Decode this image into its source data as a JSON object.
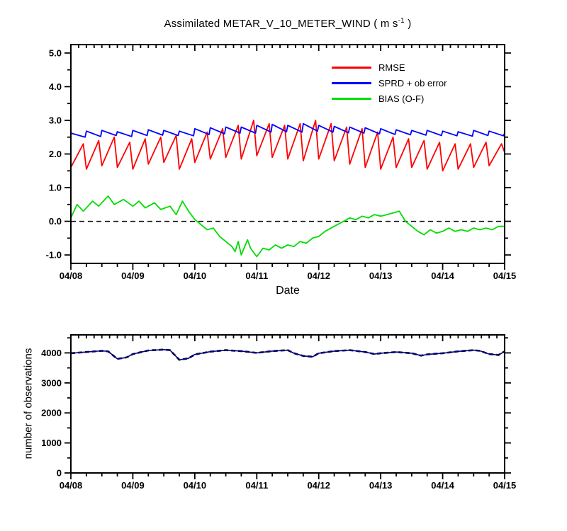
{
  "title": {
    "prefix": "Assimilated METAR_V_10_METER_WIND ( m s",
    "sup": "-1",
    "suffix": " )"
  },
  "chart_data": [
    {
      "type": "line",
      "panel": "errors",
      "title": "Assimilated METAR_V_10_METER_WIND ( m s-1 )",
      "xlabel": "Date",
      "xlim": [
        0,
        7
      ],
      "ylim": [
        -1.25,
        5.25
      ],
      "xticks": {
        "positions": [
          0,
          1,
          2,
          3,
          4,
          5,
          6,
          7
        ],
        "labels": [
          "04/08",
          "04/09",
          "04/10",
          "04/11",
          "04/12",
          "04/13",
          "04/14",
          "04/15"
        ]
      },
      "yticks": {
        "values": [
          -1,
          0,
          1,
          2,
          3,
          4,
          5
        ],
        "labels": [
          "-1.0",
          "0.0",
          "1.0",
          "2.0",
          "3.0",
          "4.0",
          "5.0"
        ]
      },
      "x_minor_step": 0.25,
      "x_minor_step_top": 0.125,
      "y_minor_step": 0.5,
      "zero_line": true,
      "grid": false,
      "legend_position": "top-right-inside",
      "series": [
        {
          "name": "RMSE",
          "color": "#ff0000",
          "points": [
            [
              0,
              1.6
            ],
            [
              0.2,
              2.3
            ],
            [
              0.25,
              1.55
            ],
            [
              0.45,
              2.4
            ],
            [
              0.5,
              1.65
            ],
            [
              0.7,
              2.5
            ],
            [
              0.75,
              1.6
            ],
            [
              0.95,
              2.35
            ],
            [
              1.0,
              1.55
            ],
            [
              1.2,
              2.45
            ],
            [
              1.25,
              1.7
            ],
            [
              1.45,
              2.5
            ],
            [
              1.5,
              1.75
            ],
            [
              1.7,
              2.55
            ],
            [
              1.75,
              1.55
            ],
            [
              1.95,
              2.45
            ],
            [
              2.0,
              1.75
            ],
            [
              2.2,
              2.65
            ],
            [
              2.25,
              1.85
            ],
            [
              2.45,
              2.75
            ],
            [
              2.5,
              1.9
            ],
            [
              2.7,
              2.85
            ],
            [
              2.75,
              1.85
            ],
            [
              2.95,
              3.0
            ],
            [
              3.0,
              1.95
            ],
            [
              3.2,
              2.9
            ],
            [
              3.25,
              1.9
            ],
            [
              3.45,
              2.85
            ],
            [
              3.5,
              1.85
            ],
            [
              3.7,
              2.9
            ],
            [
              3.75,
              1.8
            ],
            [
              3.95,
              3.0
            ],
            [
              4.0,
              1.85
            ],
            [
              4.2,
              2.9
            ],
            [
              4.25,
              1.8
            ],
            [
              4.45,
              2.8
            ],
            [
              4.5,
              1.7
            ],
            [
              4.7,
              2.75
            ],
            [
              4.75,
              1.6
            ],
            [
              4.95,
              2.65
            ],
            [
              5.0,
              1.55
            ],
            [
              5.2,
              2.5
            ],
            [
              5.25,
              1.6
            ],
            [
              5.45,
              2.45
            ],
            [
              5.5,
              1.6
            ],
            [
              5.7,
              2.4
            ],
            [
              5.75,
              1.55
            ],
            [
              5.95,
              2.35
            ],
            [
              6.0,
              1.5
            ],
            [
              6.2,
              2.3
            ],
            [
              6.25,
              1.55
            ],
            [
              6.45,
              2.3
            ],
            [
              6.5,
              1.6
            ],
            [
              6.7,
              2.35
            ],
            [
              6.75,
              1.65
            ],
            [
              6.95,
              2.3
            ],
            [
              7.0,
              2.05
            ]
          ]
        },
        {
          "name": "SPRD + ob error",
          "color": "#0000ff",
          "points": [
            [
              0,
              2.62
            ],
            [
              0.23,
              2.5
            ],
            [
              0.25,
              2.68
            ],
            [
              0.48,
              2.52
            ],
            [
              0.5,
              2.7
            ],
            [
              0.73,
              2.55
            ],
            [
              0.75,
              2.66
            ],
            [
              0.98,
              2.52
            ],
            [
              1.0,
              2.7
            ],
            [
              1.23,
              2.55
            ],
            [
              1.25,
              2.72
            ],
            [
              1.48,
              2.56
            ],
            [
              1.5,
              2.7
            ],
            [
              1.73,
              2.55
            ],
            [
              1.75,
              2.68
            ],
            [
              1.98,
              2.54
            ],
            [
              2.0,
              2.75
            ],
            [
              2.23,
              2.58
            ],
            [
              2.25,
              2.78
            ],
            [
              2.48,
              2.6
            ],
            [
              2.5,
              2.8
            ],
            [
              2.73,
              2.62
            ],
            [
              2.75,
              2.8
            ],
            [
              2.98,
              2.62
            ],
            [
              3.0,
              2.85
            ],
            [
              3.23,
              2.65
            ],
            [
              3.25,
              2.88
            ],
            [
              3.48,
              2.66
            ],
            [
              3.5,
              2.85
            ],
            [
              3.73,
              2.65
            ],
            [
              3.75,
              2.9
            ],
            [
              3.98,
              2.68
            ],
            [
              4.0,
              2.85
            ],
            [
              4.23,
              2.65
            ],
            [
              4.25,
              2.82
            ],
            [
              4.48,
              2.63
            ],
            [
              4.5,
              2.8
            ],
            [
              4.73,
              2.62
            ],
            [
              4.75,
              2.78
            ],
            [
              4.98,
              2.6
            ],
            [
              5.0,
              2.75
            ],
            [
              5.23,
              2.58
            ],
            [
              5.25,
              2.72
            ],
            [
              5.48,
              2.57
            ],
            [
              5.5,
              2.7
            ],
            [
              5.73,
              2.56
            ],
            [
              5.75,
              2.7
            ],
            [
              5.98,
              2.55
            ],
            [
              6.0,
              2.68
            ],
            [
              6.23,
              2.54
            ],
            [
              6.25,
              2.66
            ],
            [
              6.48,
              2.53
            ],
            [
              6.5,
              2.7
            ],
            [
              6.73,
              2.55
            ],
            [
              6.75,
              2.68
            ],
            [
              6.98,
              2.54
            ],
            [
              7.0,
              2.62
            ]
          ]
        },
        {
          "name": "BIAS (O-F)",
          "color": "#00dd00",
          "points": [
            [
              0,
              0.1
            ],
            [
              0.1,
              0.5
            ],
            [
              0.2,
              0.3
            ],
            [
              0.35,
              0.6
            ],
            [
              0.45,
              0.45
            ],
            [
              0.6,
              0.75
            ],
            [
              0.7,
              0.5
            ],
            [
              0.85,
              0.65
            ],
            [
              1.0,
              0.45
            ],
            [
              1.1,
              0.6
            ],
            [
              1.2,
              0.4
            ],
            [
              1.35,
              0.55
            ],
            [
              1.45,
              0.35
            ],
            [
              1.6,
              0.45
            ],
            [
              1.7,
              0.2
            ],
            [
              1.8,
              0.6
            ],
            [
              1.9,
              0.3
            ],
            [
              2.0,
              0.05
            ],
            [
              2.1,
              -0.1
            ],
            [
              2.2,
              -0.25
            ],
            [
              2.3,
              -0.2
            ],
            [
              2.4,
              -0.45
            ],
            [
              2.5,
              -0.6
            ],
            [
              2.6,
              -0.75
            ],
            [
              2.65,
              -0.9
            ],
            [
              2.7,
              -0.6
            ],
            [
              2.75,
              -1.0
            ],
            [
              2.85,
              -0.55
            ],
            [
              2.9,
              -0.8
            ],
            [
              3.0,
              -1.05
            ],
            [
              3.1,
              -0.8
            ],
            [
              3.2,
              -0.85
            ],
            [
              3.3,
              -0.7
            ],
            [
              3.4,
              -0.8
            ],
            [
              3.5,
              -0.7
            ],
            [
              3.6,
              -0.75
            ],
            [
              3.7,
              -0.6
            ],
            [
              3.8,
              -0.65
            ],
            [
              3.9,
              -0.5
            ],
            [
              4.0,
              -0.45
            ],
            [
              4.1,
              -0.3
            ],
            [
              4.2,
              -0.2
            ],
            [
              4.3,
              -0.1
            ],
            [
              4.4,
              0.0
            ],
            [
              4.5,
              0.1
            ],
            [
              4.6,
              0.05
            ],
            [
              4.7,
              0.15
            ],
            [
              4.8,
              0.1
            ],
            [
              4.9,
              0.2
            ],
            [
              5.0,
              0.15
            ],
            [
              5.1,
              0.2
            ],
            [
              5.2,
              0.25
            ],
            [
              5.3,
              0.3
            ],
            [
              5.4,
              0.0
            ],
            [
              5.5,
              -0.15
            ],
            [
              5.6,
              -0.3
            ],
            [
              5.7,
              -0.4
            ],
            [
              5.8,
              -0.25
            ],
            [
              5.9,
              -0.35
            ],
            [
              6.0,
              -0.3
            ],
            [
              6.1,
              -0.2
            ],
            [
              6.2,
              -0.3
            ],
            [
              6.3,
              -0.25
            ],
            [
              6.4,
              -0.3
            ],
            [
              6.5,
              -0.2
            ],
            [
              6.6,
              -0.25
            ],
            [
              6.7,
              -0.2
            ],
            [
              6.8,
              -0.25
            ],
            [
              6.9,
              -0.15
            ],
            [
              7.0,
              -0.15
            ]
          ]
        }
      ]
    },
    {
      "type": "line",
      "panel": "observations",
      "ylabel": "number of observations",
      "xlim": [
        0,
        7
      ],
      "ylim": [
        0,
        4600
      ],
      "xticks": {
        "positions": [
          0,
          1,
          2,
          3,
          4,
          5,
          6,
          7
        ],
        "labels": [
          "04/08",
          "04/09",
          "04/10",
          "04/11",
          "04/12",
          "04/13",
          "04/14",
          "04/15"
        ]
      },
      "yticks": {
        "values": [
          0,
          1000,
          2000,
          3000,
          4000
        ],
        "labels": [
          "0",
          "1000",
          "2000",
          "3000",
          "4000"
        ]
      },
      "x_minor_step": 0.25,
      "x_minor_step_top": 0.125,
      "y_minor_step": 500,
      "zero_line": false,
      "grid": false,
      "series": [
        {
          "name": "number of observations",
          "color": "#00008b",
          "overlay_dash_color": "#000000",
          "width": 1.6,
          "points": [
            [
              0,
              3990
            ],
            [
              0.25,
              4030
            ],
            [
              0.5,
              4070
            ],
            [
              0.6,
              4050
            ],
            [
              0.75,
              3800
            ],
            [
              0.9,
              3850
            ],
            [
              1.0,
              3960
            ],
            [
              1.25,
              4080
            ],
            [
              1.5,
              4110
            ],
            [
              1.6,
              4090
            ],
            [
              1.75,
              3770
            ],
            [
              1.9,
              3820
            ],
            [
              2.0,
              3950
            ],
            [
              2.25,
              4040
            ],
            [
              2.5,
              4090
            ],
            [
              2.75,
              4060
            ],
            [
              3.0,
              4000
            ],
            [
              3.25,
              4060
            ],
            [
              3.5,
              4090
            ],
            [
              3.6,
              3990
            ],
            [
              3.75,
              3900
            ],
            [
              3.9,
              3870
            ],
            [
              4.0,
              3990
            ],
            [
              4.25,
              4060
            ],
            [
              4.5,
              4090
            ],
            [
              4.75,
              4030
            ],
            [
              4.9,
              3960
            ],
            [
              5.0,
              3990
            ],
            [
              5.25,
              4030
            ],
            [
              5.5,
              3990
            ],
            [
              5.65,
              3910
            ],
            [
              5.75,
              3950
            ],
            [
              6.0,
              3990
            ],
            [
              6.25,
              4050
            ],
            [
              6.5,
              4090
            ],
            [
              6.6,
              4070
            ],
            [
              6.75,
              3960
            ],
            [
              6.9,
              3930
            ],
            [
              7.0,
              4050
            ]
          ]
        }
      ]
    }
  ]
}
